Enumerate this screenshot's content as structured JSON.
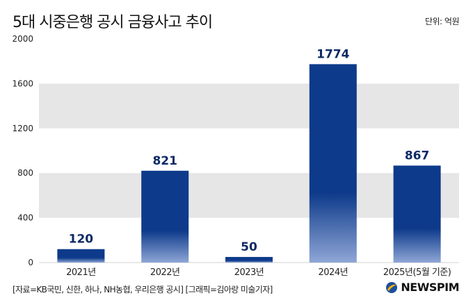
{
  "title": "5대 시중은행 공시 금융사고 추이",
  "unit_text": "단위: 억원",
  "source_text": "[자료=KB국민, 신한, 하나, NH농협, 우리은행 공시] [그래픽=김아랑 미술기자]",
  "logo_text": "NEWSPIM",
  "colors": {
    "bar_top": "#0d3a8a",
    "bar_bottom": "#8fa6d6",
    "band": "#e6e6e6",
    "logo_accent": "#f5b400",
    "logo_blue": "#1d4f9c"
  },
  "chart_data": {
    "type": "bar",
    "title": "5대 시중은행 공시 금융사고 추이",
    "ylabel": "",
    "xlabel": "",
    "unit": "단위: 억원",
    "categories": [
      "2021년",
      "2022년",
      "2023년",
      "2024년",
      "2025년(5월 기준)"
    ],
    "values": [
      120,
      821,
      50,
      1774,
      867
    ],
    "ylim": [
      0,
      2000
    ],
    "yticks": [
      0,
      400,
      800,
      1200,
      1600,
      2000
    ],
    "grid": "alternating horizontal bands",
    "legend": "none"
  }
}
